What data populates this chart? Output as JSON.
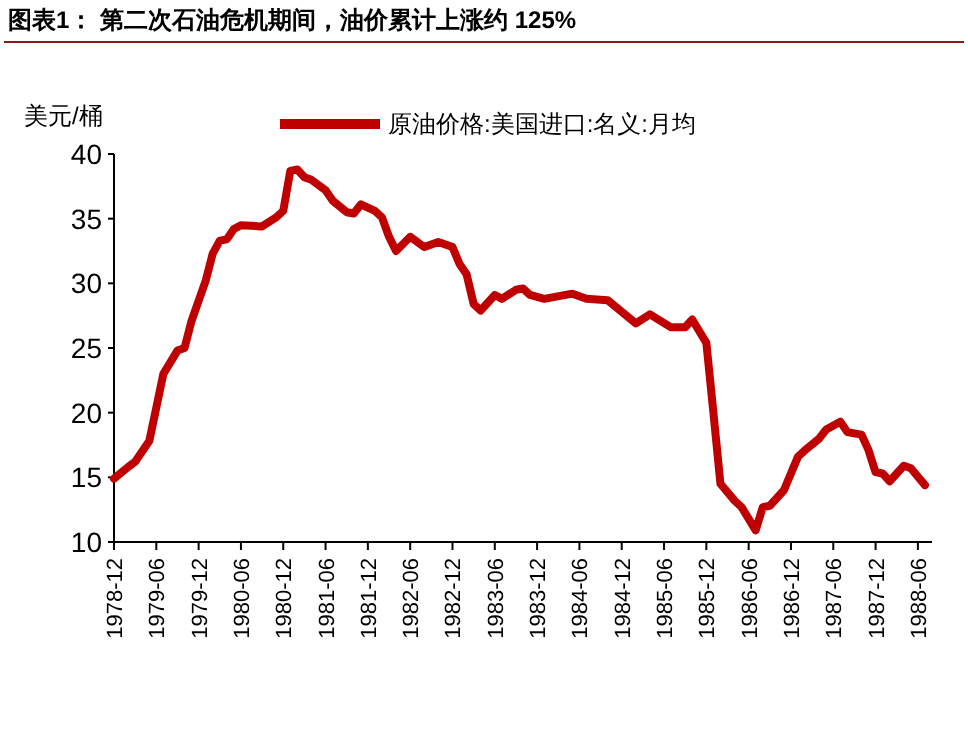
{
  "chart_data": {
    "type": "line",
    "title": "图表1：  第二次石油危机期间，油价累计上涨约 125%",
    "ylabel": "美元/桶",
    "x": [
      "1978-12",
      "1979-02",
      "1979-03",
      "1979-05",
      "1979-06",
      "1979-07",
      "1979-09",
      "1979-10",
      "1979-11",
      "1980-01",
      "1980-02",
      "1980-03",
      "1980-04",
      "1980-05",
      "1980-06",
      "1980-09",
      "1980-11",
      "1980-12",
      "1981-01",
      "1981-02",
      "1981-03",
      "1981-04",
      "1981-06",
      "1981-07",
      "1981-09",
      "1981-10",
      "1981-11",
      "1982-01",
      "1982-02",
      "1982-03",
      "1982-04",
      "1982-06",
      "1982-08",
      "1982-10",
      "1982-12",
      "1983-01",
      "1983-02",
      "1983-03",
      "1983-04",
      "1983-06",
      "1983-07",
      "1983-09",
      "1983-10",
      "1983-11",
      "1984-01",
      "1984-05",
      "1984-07",
      "1984-10",
      "1985-02",
      "1985-04",
      "1985-07",
      "1985-09",
      "1985-10",
      "1985-12",
      "1986-01",
      "1986-02",
      "1986-04",
      "1986-05",
      "1986-07",
      "1986-08",
      "1986-09",
      "1986-11",
      "1987-01",
      "1987-02",
      "1987-04",
      "1987-05",
      "1987-07",
      "1987-08",
      "1987-10",
      "1987-11",
      "1987-12",
      "1988-01",
      "1988-02",
      "1988-04",
      "1988-05",
      "1988-07"
    ],
    "series": [
      {
        "name": "原油价格:美国进口:名义:月均",
        "color": "#c00000",
        "values": [
          14.9,
          15.8,
          16.2,
          17.8,
          20.4,
          23.0,
          24.8,
          25.0,
          27.1,
          30.2,
          32.3,
          33.3,
          33.4,
          34.2,
          34.5,
          34.4,
          35.1,
          35.6,
          38.7,
          38.8,
          38.2,
          38.0,
          37.2,
          36.4,
          35.5,
          35.4,
          36.1,
          35.6,
          35.1,
          33.6,
          32.5,
          33.6,
          32.8,
          33.2,
          32.8,
          31.5,
          30.7,
          28.4,
          27.9,
          29.1,
          28.8,
          29.5,
          29.6,
          29.1,
          28.8,
          29.2,
          28.8,
          28.7,
          26.9,
          27.6,
          26.6,
          26.6,
          27.2,
          25.4,
          20.0,
          14.5,
          13.2,
          12.7,
          10.9,
          12.7,
          12.8,
          14.0,
          16.6,
          17.1,
          18.0,
          18.7,
          19.3,
          18.5,
          18.3,
          17.1,
          15.4,
          15.3,
          14.7,
          15.9,
          15.7,
          14.4
        ]
      }
    ],
    "xlim": [
      "1978-12",
      "1988-08"
    ],
    "xticks": [
      "1978-12",
      "1979-06",
      "1979-12",
      "1980-06",
      "1980-12",
      "1981-06",
      "1981-12",
      "1982-06",
      "1982-12",
      "1983-06",
      "1983-12",
      "1984-06",
      "1984-12",
      "1985-06",
      "1985-12",
      "1986-06",
      "1986-12",
      "1987-06",
      "1987-12",
      "1988-06"
    ],
    "ylim": [
      10,
      40
    ],
    "yticks": [
      10,
      15,
      20,
      25,
      30,
      35,
      40
    ],
    "grid": false,
    "legend": "top",
    "marker": "none",
    "line_style": "solid"
  }
}
